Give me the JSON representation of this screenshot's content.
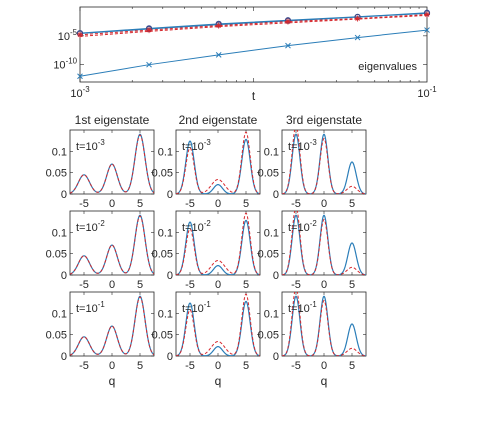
{
  "colors": {
    "solid": "#2a7db8",
    "dashed": "#d6282d",
    "marker_circle": "#3b4a8c",
    "axis": "#262626"
  },
  "chart_data": [
    {
      "id": "eigenvalues",
      "type": "line",
      "log_x": true,
      "log_y": true,
      "xlim": [
        0.001,
        0.1
      ],
      "ylim": [
        1e-13,
        1
      ],
      "x_tick_labels": [
        "10^-3",
        "10^-1"
      ],
      "y_tick_labels": [
        "10^-5",
        "10^-10"
      ],
      "xlabel": "t",
      "annotation": "eigenvalues",
      "x": [
        0.001,
        0.0025,
        0.0063,
        0.0158,
        0.0398,
        0.1
      ],
      "series": [
        {
          "style": "solid-circle",
          "values": [
            3e-05,
            0.0002,
            0.0012,
            0.005,
            0.02,
            0.1
          ]
        },
        {
          "style": "solid-circle",
          "values": [
            2.5e-05,
            0.00015,
            0.0009,
            0.004,
            0.018,
            0.08
          ]
        },
        {
          "style": "dashed-star",
          "values": [
            1.5e-05,
            0.0001,
            0.0006,
            0.003,
            0.01,
            0.05
          ]
        },
        {
          "style": "dashed",
          "values": [
            8e-06,
            6e-05,
            0.0004,
            0.0018,
            0.008,
            0.035
          ]
        },
        {
          "style": "solid-x",
          "values": [
            1e-12,
            1e-10,
            5e-09,
            2e-07,
            5e-06,
            0.0001
          ]
        }
      ]
    },
    {
      "id": "eigenstates",
      "type": "line",
      "column_titles": [
        "1st eigenstate",
        "2nd eigenstate",
        "3rd eigenstate"
      ],
      "row_labels": [
        "t=10^-3",
        "t=10^-2",
        "t=10^-1"
      ],
      "xlabel": "q",
      "xlim": [
        -7.5,
        7.5
      ],
      "x_ticks": [
        -5,
        0,
        5
      ],
      "x_tick_labels": [
        "-5",
        "0",
        "5"
      ],
      "ylim": [
        0,
        0.15
      ],
      "y_ticks": [
        0,
        0.05,
        0.1
      ],
      "y_tick_labels": [
        "0",
        "0.05",
        "0.1"
      ],
      "panels": [
        [
          {
            "solid": [
              [
                -5,
                0.045,
                1.0
              ],
              [
                0,
                0.07,
                0.95
              ],
              [
                5,
                0.14,
                0.9
              ]
            ],
            "dashed": [
              [
                -5,
                0.045,
                1.0
              ],
              [
                0,
                0.07,
                0.95
              ],
              [
                5,
                0.138,
                0.9
              ]
            ]
          },
          {
            "solid": [
              [
                -5,
                0.124,
                0.75
              ],
              [
                0,
                0.022,
                0.8
              ],
              [
                5,
                0.128,
                0.75
              ]
            ],
            "dashed": [
              [
                -5,
                0.108,
                0.75
              ],
              [
                0,
                0.034,
                1.2
              ],
              [
                5,
                0.145,
                0.75
              ]
            ]
          },
          {
            "solid": [
              [
                -5,
                0.14,
                0.7
              ],
              [
                0,
                0.14,
                0.7
              ],
              [
                5,
                0.075,
                0.75
              ]
            ],
            "dashed": [
              [
                -5,
                0.16,
                0.7
              ],
              [
                0,
                0.13,
                0.7
              ],
              [
                5,
                0.018,
                0.9
              ]
            ]
          }
        ],
        [
          {
            "solid": [
              [
                -5,
                0.045,
                1.0
              ],
              [
                0,
                0.07,
                0.95
              ],
              [
                5,
                0.14,
                0.9
              ]
            ],
            "dashed": [
              [
                -5,
                0.045,
                1.0
              ],
              [
                0,
                0.07,
                0.95
              ],
              [
                5,
                0.138,
                0.9
              ]
            ]
          },
          {
            "solid": [
              [
                -5,
                0.124,
                0.75
              ],
              [
                0,
                0.022,
                0.8
              ],
              [
                5,
                0.128,
                0.75
              ]
            ],
            "dashed": [
              [
                -5,
                0.108,
                0.75
              ],
              [
                0,
                0.034,
                1.2
              ],
              [
                5,
                0.145,
                0.75
              ]
            ]
          },
          {
            "solid": [
              [
                -5,
                0.14,
                0.7
              ],
              [
                0,
                0.14,
                0.7
              ],
              [
                5,
                0.075,
                0.75
              ]
            ],
            "dashed": [
              [
                -5,
                0.16,
                0.7
              ],
              [
                0,
                0.13,
                0.7
              ],
              [
                5,
                0.018,
                0.9
              ]
            ]
          }
        ],
        [
          {
            "solid": [
              [
                -5,
                0.045,
                1.0
              ],
              [
                0,
                0.07,
                0.95
              ],
              [
                5,
                0.14,
                0.9
              ]
            ],
            "dashed": [
              [
                -5,
                0.045,
                1.0
              ],
              [
                0,
                0.07,
                0.95
              ],
              [
                5,
                0.138,
                0.9
              ]
            ]
          },
          {
            "solid": [
              [
                -5,
                0.124,
                0.75
              ],
              [
                0,
                0.022,
                0.8
              ],
              [
                5,
                0.128,
                0.75
              ]
            ],
            "dashed": [
              [
                -5,
                0.108,
                0.75
              ],
              [
                0,
                0.034,
                1.2
              ],
              [
                5,
                0.145,
                0.75
              ]
            ]
          },
          {
            "solid": [
              [
                -5,
                0.14,
                0.7
              ],
              [
                0,
                0.14,
                0.7
              ],
              [
                5,
                0.075,
                0.75
              ]
            ],
            "dashed": [
              [
                -5,
                0.16,
                0.7
              ],
              [
                0,
                0.13,
                0.7
              ],
              [
                5,
                0.018,
                0.9
              ]
            ]
          }
        ]
      ]
    }
  ]
}
